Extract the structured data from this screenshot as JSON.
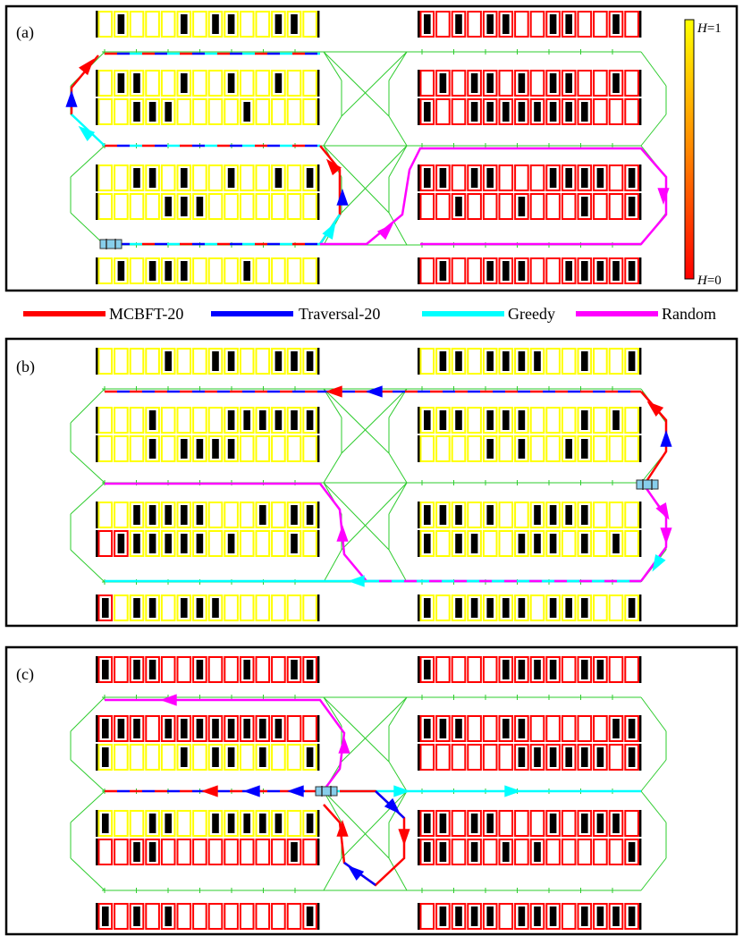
{
  "panels": [
    {
      "id": "a",
      "label": "(a)",
      "top_rows": [
        "yellow",
        "yellow",
        "yellow",
        "yellow",
        "yellow",
        "yellow",
        "yellow",
        "yellow",
        "yellow",
        "yellow",
        "yellow",
        "yellow",
        "yellow",
        "yellow"
      ],
      "colorbar": true
    },
    {
      "id": "b",
      "label": "(b)",
      "colorbar": false
    },
    {
      "id": "c",
      "label": "(c)",
      "colorbar": false
    }
  ],
  "colorbar": {
    "top_label_var": "H",
    "top_label_val": "=1",
    "bottom_label_var": "H",
    "bottom_label_val": "=0",
    "colors": [
      "#ffff00",
      "#ff0000"
    ]
  },
  "legend": [
    {
      "name": "MCBFT-20",
      "color": "#ff0000"
    },
    {
      "name": "Traversal-20",
      "color": "#0000ff"
    },
    {
      "name": "Greedy",
      "color": "#00ffff"
    },
    {
      "name": "Random",
      "color": "#ff00ff"
    }
  ],
  "colors": {
    "grid": "#2ecc2e",
    "yellow_slot": "#ffff00",
    "red_slot": "#ff0000",
    "car": "#000000",
    "robot": "#87ceeb"
  }
}
